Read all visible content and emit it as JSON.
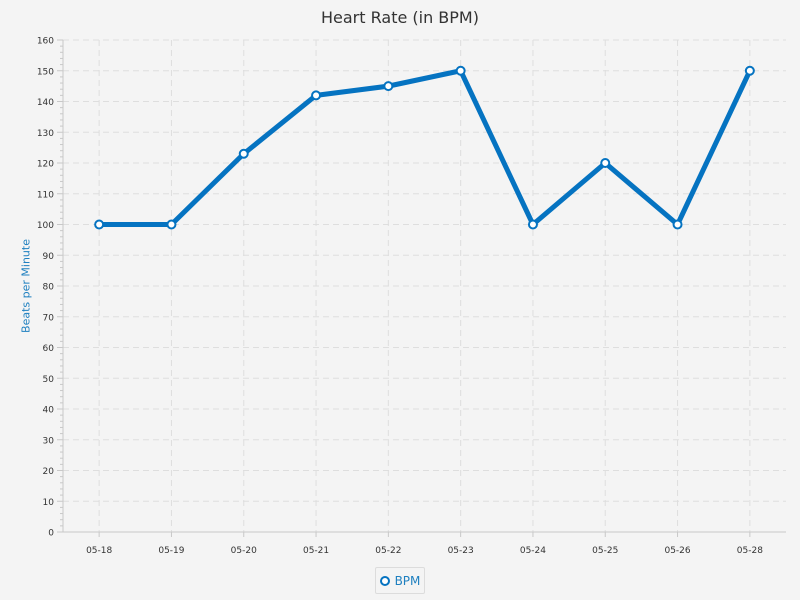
{
  "chart_data": {
    "type": "line",
    "title": "Heart Rate (in BPM)",
    "xlabel": "",
    "ylabel": "Beats per Minute",
    "categories": [
      "05-18",
      "05-19",
      "05-20",
      "05-21",
      "05-22",
      "05-23",
      "05-24",
      "05-25",
      "05-26",
      "05-28"
    ],
    "series": [
      {
        "name": "BPM",
        "values": [
          100,
          100,
          123,
          142,
          145,
          150,
          100,
          120,
          100,
          150
        ],
        "color": "#0573c1"
      }
    ],
    "ylim": [
      0,
      160
    ],
    "y_tick_step": 10,
    "y_minor_ticks_per_major": 5,
    "grid": true,
    "legend": "bottom-center"
  },
  "colors": {
    "background": "#f4f4f4",
    "grid": "#dedede",
    "axis": "#c8c8c8",
    "tick_label": "#333333",
    "axis_label": "#1f80c0",
    "marker_fill": "#ffffff"
  }
}
